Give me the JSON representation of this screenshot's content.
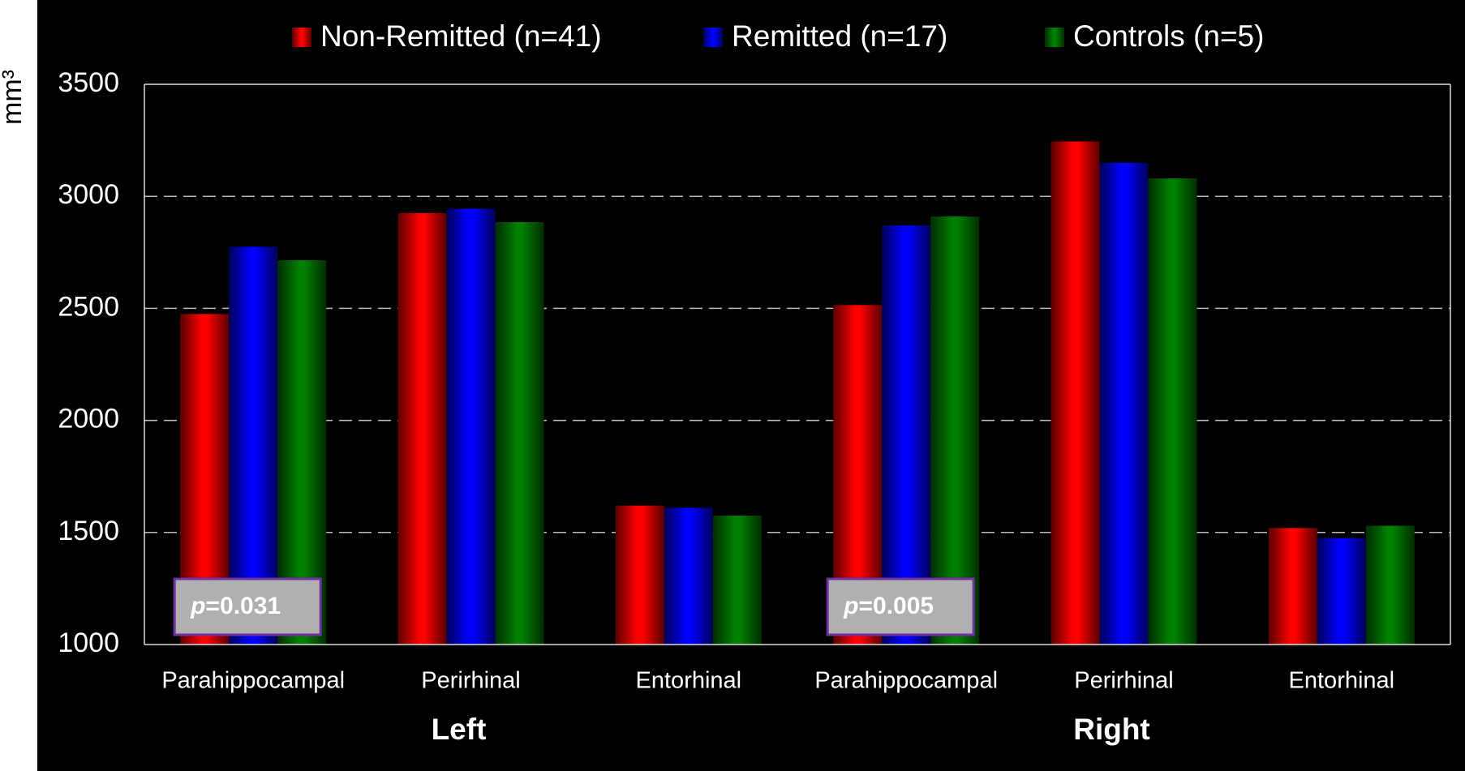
{
  "chart_data": {
    "type": "bar",
    "y_label": "mm³",
    "categories": [
      "Parahippocampal",
      "Perirhinal",
      "Entorhinal",
      "Parahippocampal",
      "Perirhinal",
      "Entorhinal"
    ],
    "group_labels": [
      "Left",
      "Right"
    ],
    "series": [
      {
        "name": "Non-Remitted (n=41)",
        "color": "#ff0000",
        "values": [
          2475,
          2925,
          1620,
          2515,
          3245,
          1520
        ]
      },
      {
        "name": "Remitted (n=17)",
        "color": "#0000ff",
        "values": [
          2775,
          2945,
          1610,
          2870,
          3150,
          1475
        ]
      },
      {
        "name": "Controls (n=5)",
        "color": "#008000",
        "values": [
          2715,
          2885,
          1575,
          2910,
          3080,
          1530
        ]
      }
    ],
    "annotations": [
      "p=0.031",
      "p=0.005"
    ],
    "ylim": [
      1000,
      3500
    ],
    "yticks": [
      1000,
      1500,
      2000,
      2500,
      3000,
      3500
    ],
    "grid": true
  }
}
